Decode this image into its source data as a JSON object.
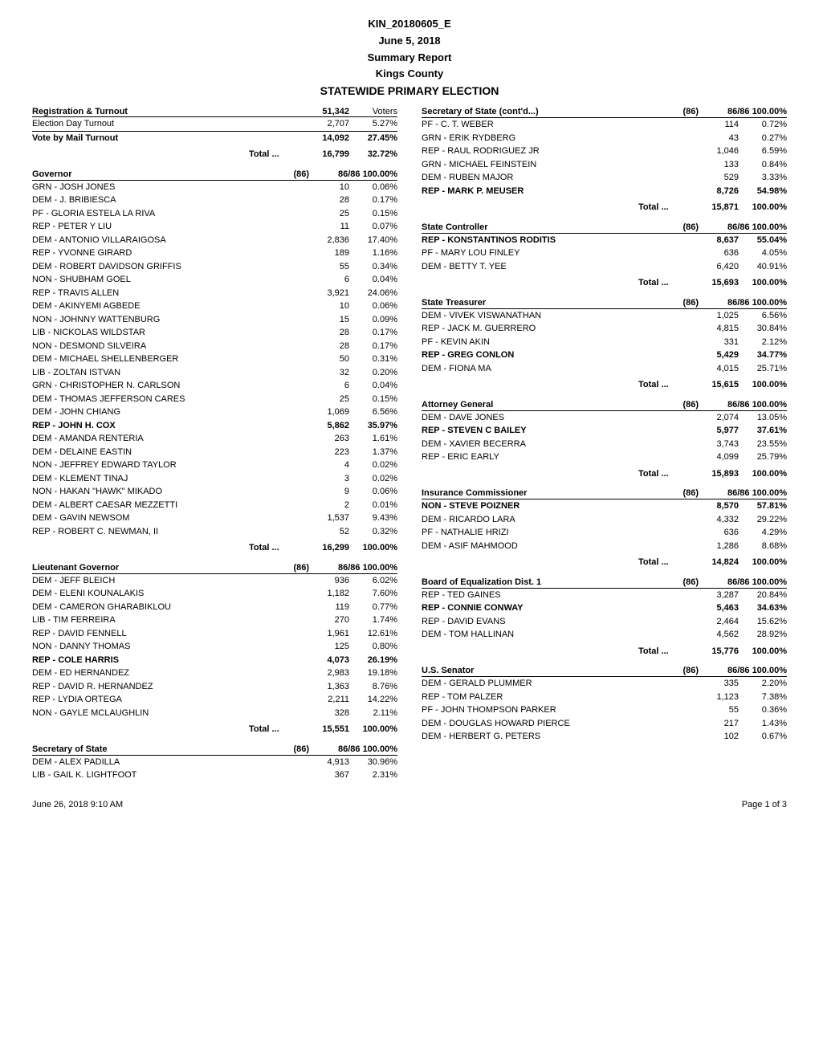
{
  "header": {
    "id": "KIN_20180605_E",
    "date": "June 5, 2018",
    "report": "Summary Report",
    "county": "Kings County",
    "title": "STATEWIDE PRIMARY ELECTION"
  },
  "registration": {
    "title": "Registration & Turnout",
    "total_reg": "51,342",
    "voters_label": "Voters",
    "rows": [
      {
        "label": "Election Day Turnout",
        "votes": "2,707",
        "pct": "5.27%",
        "bold": false,
        "under": true
      },
      {
        "label": "Vote by Mail Turnout",
        "votes": "14,092",
        "pct": "27.45%",
        "bold": true,
        "under": false
      }
    ],
    "total_label": "Total ...",
    "total_votes": "16,799",
    "total_pct": "32.72%"
  },
  "left_sections": [
    {
      "title": "Governor",
      "precincts": "(86)",
      "ratio": "86/86 100.00%",
      "rows": [
        {
          "label": "GRN - JOSH JONES",
          "votes": "10",
          "pct": "0.06%"
        },
        {
          "label": "DEM - J. BRIBIESCA",
          "votes": "28",
          "pct": "0.17%"
        },
        {
          "label": "PF - GLORIA ESTELA LA RIVA",
          "votes": "25",
          "pct": "0.15%"
        },
        {
          "label": "REP - PETER Y LIU",
          "votes": "11",
          "pct": "0.07%"
        },
        {
          "label": "DEM - ANTONIO VILLARAIGOSA",
          "votes": "2,836",
          "pct": "17.40%"
        },
        {
          "label": "REP - YVONNE GIRARD",
          "votes": "189",
          "pct": "1.16%"
        },
        {
          "label": "DEM - ROBERT DAVIDSON GRIFFIS",
          "votes": "55",
          "pct": "0.34%"
        },
        {
          "label": "NON - SHUBHAM GOEL",
          "votes": "6",
          "pct": "0.04%"
        },
        {
          "label": "REP - TRAVIS ALLEN",
          "votes": "3,921",
          "pct": "24.06%"
        },
        {
          "label": "DEM - AKINYEMI AGBEDE",
          "votes": "10",
          "pct": "0.06%"
        },
        {
          "label": "NON - JOHNNY WATTENBURG",
          "votes": "15",
          "pct": "0.09%"
        },
        {
          "label": "LIB - NICKOLAS WILDSTAR",
          "votes": "28",
          "pct": "0.17%"
        },
        {
          "label": "NON - DESMOND SILVEIRA",
          "votes": "28",
          "pct": "0.17%"
        },
        {
          "label": "DEM - MICHAEL SHELLENBERGER",
          "votes": "50",
          "pct": "0.31%"
        },
        {
          "label": "LIB - ZOLTAN ISTVAN",
          "votes": "32",
          "pct": "0.20%"
        },
        {
          "label": "GRN - CHRISTOPHER N. CARLSON",
          "votes": "6",
          "pct": "0.04%"
        },
        {
          "label": "DEM - THOMAS JEFFERSON CARES",
          "votes": "25",
          "pct": "0.15%"
        },
        {
          "label": "DEM - JOHN CHIANG",
          "votes": "1,069",
          "pct": "6.56%"
        },
        {
          "label": "REP - JOHN H. COX",
          "votes": "5,862",
          "pct": "35.97%",
          "bold": true
        },
        {
          "label": "DEM - AMANDA RENTERIA",
          "votes": "263",
          "pct": "1.61%"
        },
        {
          "label": "DEM - DELAINE EASTIN",
          "votes": "223",
          "pct": "1.37%"
        },
        {
          "label": "NON - JEFFREY EDWARD TAYLOR",
          "votes": "4",
          "pct": "0.02%"
        },
        {
          "label": "DEM - KLEMENT TINAJ",
          "votes": "3",
          "pct": "0.02%"
        },
        {
          "label": "NON - HAKAN \"HAWK\" MIKADO",
          "votes": "9",
          "pct": "0.06%"
        },
        {
          "label": "DEM - ALBERT CAESAR MEZZETTI",
          "votes": "2",
          "pct": "0.01%"
        },
        {
          "label": "DEM - GAVIN NEWSOM",
          "votes": "1,537",
          "pct": "9.43%"
        },
        {
          "label": "REP - ROBERT C. NEWMAN, II",
          "votes": "52",
          "pct": "0.32%"
        }
      ],
      "total_votes": "16,299",
      "total_pct": "100.00%"
    },
    {
      "title": "Lieutenant Governor",
      "precincts": "(86)",
      "ratio": "86/86 100.00%",
      "rows": [
        {
          "label": "DEM - JEFF BLEICH",
          "votes": "936",
          "pct": "6.02%"
        },
        {
          "label": "DEM - ELENI KOUNALAKIS",
          "votes": "1,182",
          "pct": "7.60%"
        },
        {
          "label": "DEM - CAMERON GHARABIKLOU",
          "votes": "119",
          "pct": "0.77%"
        },
        {
          "label": "LIB - TIM FERREIRA",
          "votes": "270",
          "pct": "1.74%"
        },
        {
          "label": "REP - DAVID FENNELL",
          "votes": "1,961",
          "pct": "12.61%"
        },
        {
          "label": "NON - DANNY THOMAS",
          "votes": "125",
          "pct": "0.80%"
        },
        {
          "label": "REP - COLE HARRIS",
          "votes": "4,073",
          "pct": "26.19%",
          "bold": true
        },
        {
          "label": "DEM - ED HERNANDEZ",
          "votes": "2,983",
          "pct": "19.18%"
        },
        {
          "label": "REP - DAVID R. HERNANDEZ",
          "votes": "1,363",
          "pct": "8.76%"
        },
        {
          "label": "REP - LYDIA ORTEGA",
          "votes": "2,211",
          "pct": "14.22%"
        },
        {
          "label": "NON - GAYLE MCLAUGHLIN",
          "votes": "328",
          "pct": "2.11%"
        }
      ],
      "total_votes": "15,551",
      "total_pct": "100.00%"
    },
    {
      "title": "Secretary of State",
      "precincts": "(86)",
      "ratio": "86/86 100.00%",
      "rows": [
        {
          "label": "DEM - ALEX PADILLA",
          "votes": "4,913",
          "pct": "30.96%"
        },
        {
          "label": "LIB - GAIL K. LIGHTFOOT",
          "votes": "367",
          "pct": "2.31%"
        }
      ]
    }
  ],
  "right_sections": [
    {
      "title": "Secretary of State  (cont'd...)",
      "precincts": "(86)",
      "ratio": "86/86 100.00%",
      "rows": [
        {
          "label": "PF - C. T. WEBER",
          "votes": "114",
          "pct": "0.72%"
        },
        {
          "label": "GRN - ERIK RYDBERG",
          "votes": "43",
          "pct": "0.27%"
        },
        {
          "label": "REP - RAUL RODRIGUEZ JR",
          "votes": "1,046",
          "pct": "6.59%"
        },
        {
          "label": "GRN - MICHAEL FEINSTEIN",
          "votes": "133",
          "pct": "0.84%"
        },
        {
          "label": "DEM - RUBEN MAJOR",
          "votes": "529",
          "pct": "3.33%"
        },
        {
          "label": "REP - MARK P. MEUSER",
          "votes": "8,726",
          "pct": "54.98%",
          "bold": true
        }
      ],
      "total_votes": "15,871",
      "total_pct": "100.00%"
    },
    {
      "title": "State Controller",
      "precincts": "(86)",
      "ratio": "86/86 100.00%",
      "rows": [
        {
          "label": "REP - KONSTANTINOS RODITIS",
          "votes": "8,637",
          "pct": "55.04%",
          "bold": true
        },
        {
          "label": "PF - MARY LOU FINLEY",
          "votes": "636",
          "pct": "4.05%"
        },
        {
          "label": "DEM - BETTY T. YEE",
          "votes": "6,420",
          "pct": "40.91%"
        }
      ],
      "total_votes": "15,693",
      "total_pct": "100.00%"
    },
    {
      "title": "State Treasurer",
      "precincts": "(86)",
      "ratio": "86/86 100.00%",
      "rows": [
        {
          "label": "DEM - VIVEK VISWANATHAN",
          "votes": "1,025",
          "pct": "6.56%"
        },
        {
          "label": "REP - JACK M. GUERRERO",
          "votes": "4,815",
          "pct": "30.84%"
        },
        {
          "label": "PF - KEVIN AKIN",
          "votes": "331",
          "pct": "2.12%"
        },
        {
          "label": "REP - GREG CONLON",
          "votes": "5,429",
          "pct": "34.77%",
          "bold": true
        },
        {
          "label": "DEM - FIONA MA",
          "votes": "4,015",
          "pct": "25.71%"
        }
      ],
      "total_votes": "15,615",
      "total_pct": "100.00%"
    },
    {
      "title": "Attorney General",
      "precincts": "(86)",
      "ratio": "86/86 100.00%",
      "rows": [
        {
          "label": "DEM - DAVE JONES",
          "votes": "2,074",
          "pct": "13.05%"
        },
        {
          "label": "REP - STEVEN C BAILEY",
          "votes": "5,977",
          "pct": "37.61%",
          "bold": true
        },
        {
          "label": "DEM - XAVIER BECERRA",
          "votes": "3,743",
          "pct": "23.55%"
        },
        {
          "label": "REP - ERIC EARLY",
          "votes": "4,099",
          "pct": "25.79%"
        }
      ],
      "total_votes": "15,893",
      "total_pct": "100.00%"
    },
    {
      "title": "Insurance Commissioner",
      "precincts": "(86)",
      "ratio": "86/86 100.00%",
      "rows": [
        {
          "label": "NON - STEVE POIZNER",
          "votes": "8,570",
          "pct": "57.81%",
          "bold": true
        },
        {
          "label": "DEM - RICARDO LARA",
          "votes": "4,332",
          "pct": "29.22%"
        },
        {
          "label": "PF - NATHALIE HRIZI",
          "votes": "636",
          "pct": "4.29%"
        },
        {
          "label": "DEM - ASIF MAHMOOD",
          "votes": "1,286",
          "pct": "8.68%"
        }
      ],
      "total_votes": "14,824",
      "total_pct": "100.00%"
    },
    {
      "title": "Board of Equalization Dist. 1",
      "precincts": "(86)",
      "ratio": "86/86 100.00%",
      "rows": [
        {
          "label": "REP - TED GAINES",
          "votes": "3,287",
          "pct": "20.84%"
        },
        {
          "label": "REP - CONNIE CONWAY",
          "votes": "5,463",
          "pct": "34.63%",
          "bold": true
        },
        {
          "label": "REP - DAVID EVANS",
          "votes": "2,464",
          "pct": "15.62%"
        },
        {
          "label": "DEM - TOM HALLINAN",
          "votes": "4,562",
          "pct": "28.92%"
        }
      ],
      "total_votes": "15,776",
      "total_pct": "100.00%"
    },
    {
      "title": "U.S. Senator",
      "precincts": "(86)",
      "ratio": "86/86 100.00%",
      "rows": [
        {
          "label": "DEM - GERALD PLUMMER",
          "votes": "335",
          "pct": "2.20%"
        },
        {
          "label": "REP - TOM PALZER",
          "votes": "1,123",
          "pct": "7.38%"
        },
        {
          "label": "PF - JOHN THOMPSON PARKER",
          "votes": "55",
          "pct": "0.36%"
        },
        {
          "label": "DEM - DOUGLAS HOWARD PIERCE",
          "votes": "217",
          "pct": "1.43%"
        },
        {
          "label": "DEM - HERBERT G. PETERS",
          "votes": "102",
          "pct": "0.67%"
        }
      ]
    }
  ],
  "footer": {
    "timestamp": "June 26, 2018 9:10 AM",
    "page": "Page 1 of 3"
  },
  "total_label": "Total ..."
}
